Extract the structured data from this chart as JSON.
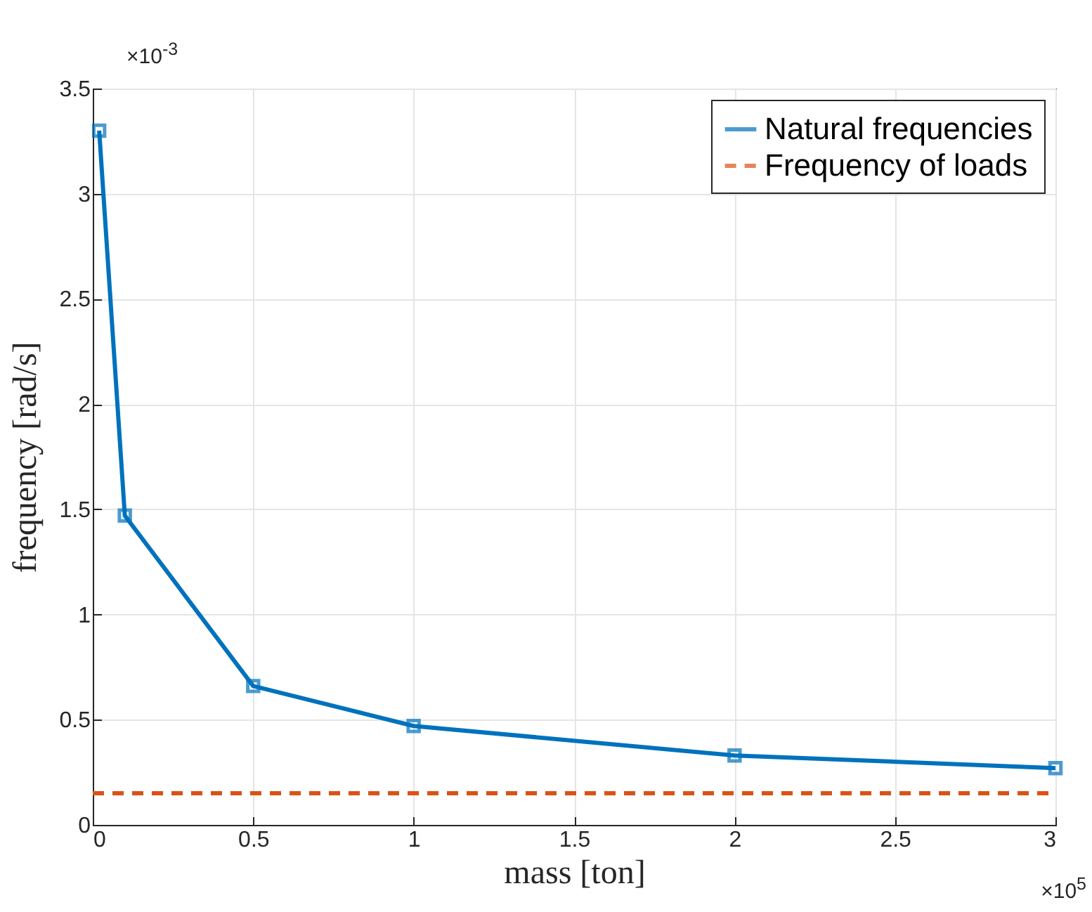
{
  "chart_data": {
    "type": "line",
    "xlabel": "mass [ton]",
    "ylabel": "frequency [rad/s]",
    "xlim": [
      0,
      3
    ],
    "xticks": [
      0,
      0.5,
      1,
      1.5,
      2,
      2.5,
      3
    ],
    "ylim": [
      0,
      3.5
    ],
    "yticks": [
      0,
      0.5,
      1,
      1.5,
      2,
      2.5,
      3,
      3.5
    ],
    "grid": true,
    "legend": "top right",
    "annotations": [
      "×10$^{-3}$",
      "×10$^{5}$"
    ],
    "series": [
      {
        "name": "Natural frequencies",
        "color": "#0072bd",
        "marker": "square",
        "line_style": "solid",
        "x": [
          0.02,
          0.1,
          0.5,
          1,
          2,
          3
        ],
        "values": [
          3.3,
          1.47,
          0.66,
          0.47,
          0.33,
          0.27
        ]
      },
      {
        "name": "Frequency of loads",
        "color": "#d95319",
        "marker": "none",
        "line_style": "dashed",
        "x": [
          0,
          3
        ],
        "values": [
          0.15,
          0.15
        ]
      }
    ]
  }
}
